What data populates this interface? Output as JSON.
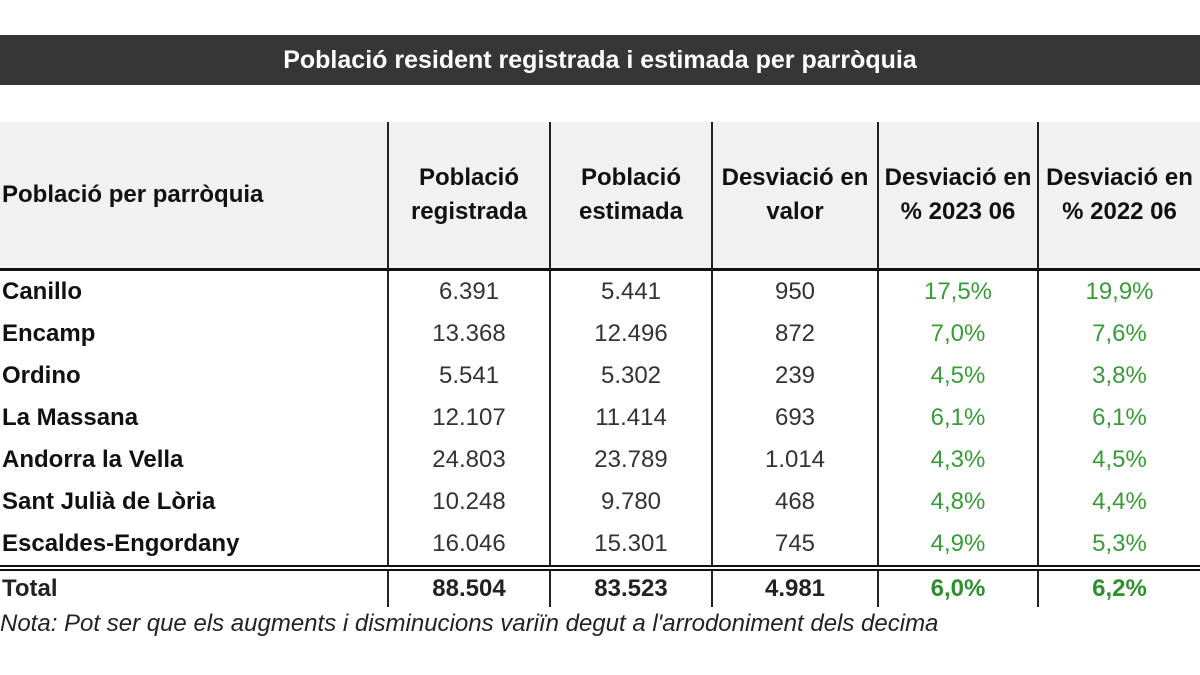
{
  "title": "Població resident registrada i estimada per parròquia",
  "headers": [
    "Població per parròquia",
    "Població registrada",
    "Població estimada",
    "Desviació en valor",
    "Desviació en % 2023 06",
    "Desviació en % 2022 06"
  ],
  "rows": [
    [
      "Canillo",
      "6.391",
      "5.441",
      "950",
      "17,5%",
      "19,9%"
    ],
    [
      "Encamp",
      "13.368",
      "12.496",
      "872",
      "7,0%",
      "7,6%"
    ],
    [
      "Ordino",
      "5.541",
      "5.302",
      "239",
      "4,5%",
      "3,8%"
    ],
    [
      "La Massana",
      "12.107",
      "11.414",
      "693",
      "6,1%",
      "6,1%"
    ],
    [
      "Andorra la Vella",
      "24.803",
      "23.789",
      "1.014",
      "4,3%",
      "4,5%"
    ],
    [
      "Sant Julià de Lòria",
      "10.248",
      "9.780",
      "468",
      "4,8%",
      "4,4%"
    ],
    [
      "Escaldes-Engordany",
      "16.046",
      "15.301",
      "745",
      "4,9%",
      "5,3%"
    ]
  ],
  "total": [
    "Total",
    "88.504",
    "83.523",
    "4.981",
    "6,0%",
    "6,2%"
  ],
  "note": "Nota: Pot ser que els augments i disminucions variïn degut a l'arrodoniment dels decima",
  "colors": {
    "title_bg": "#363636",
    "header_bg": "#f1f1f1",
    "percent": "#3a9a3a"
  }
}
